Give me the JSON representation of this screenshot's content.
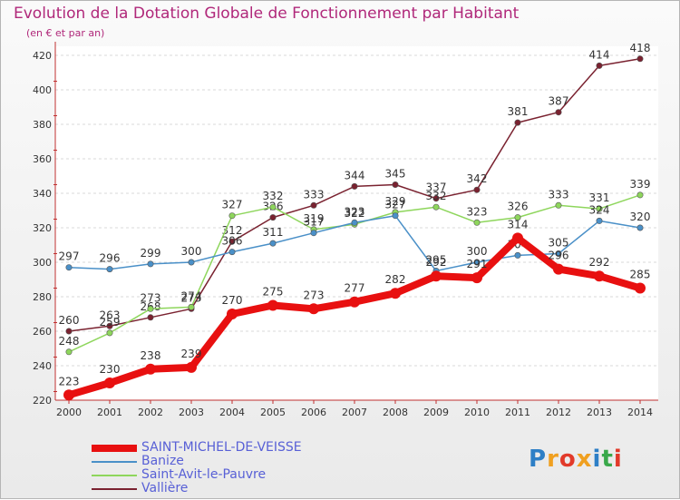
{
  "header": {
    "title": "Evolution de la Dotation Globale de Fonctionnement par Habitant",
    "subtitle": "(en € et par an)"
  },
  "logo": {
    "text": "Proxiti",
    "colors": [
      "#2e7fc6",
      "#f0a020",
      "#e23a2a",
      "#f0a020",
      "#2e7fc6",
      "#3aa84a",
      "#e23a2a"
    ]
  },
  "chart_data": {
    "type": "line",
    "x": [
      2000,
      2001,
      2002,
      2003,
      2004,
      2005,
      2006,
      2007,
      2008,
      2009,
      2010,
      2011,
      2012,
      2013,
      2014
    ],
    "ylim": [
      220,
      420
    ],
    "yticks": [
      220,
      240,
      260,
      280,
      300,
      320,
      340,
      360,
      380,
      400,
      420
    ],
    "grid": "horizontal dashed",
    "legend_position": "bottom-left",
    "series": [
      {
        "name": "Vallière",
        "color": "#7a2230",
        "values": [
          260,
          263,
          268,
          273,
          312,
          326,
          333,
          344,
          345,
          337,
          342,
          381,
          387,
          414,
          418
        ]
      },
      {
        "name": "Saint-Avit-le-Pauvre",
        "color": "#8ed65c",
        "values": [
          248,
          259,
          273,
          274,
          327,
          332,
          319,
          322,
          329,
          332,
          323,
          326,
          333,
          331,
          339
        ]
      },
      {
        "name": "Banize",
        "color": "#4a90c8",
        "values": [
          297,
          296,
          299,
          300,
          306,
          311,
          317,
          323,
          327,
          295,
          300,
          304,
          305,
          324,
          320
        ]
      },
      {
        "name": "SAINT-MICHEL-DE-VEISSE",
        "color": "#e81010",
        "values": [
          223,
          230,
          238,
          239,
          270,
          275,
          273,
          277,
          282,
          292,
          291,
          314,
          296,
          292,
          285
        ]
      }
    ],
    "legend_order": [
      "SAINT-MICHEL-DE-VEISSE",
      "Banize",
      "Saint-Avit-le-Pauvre",
      "Vallière"
    ]
  }
}
